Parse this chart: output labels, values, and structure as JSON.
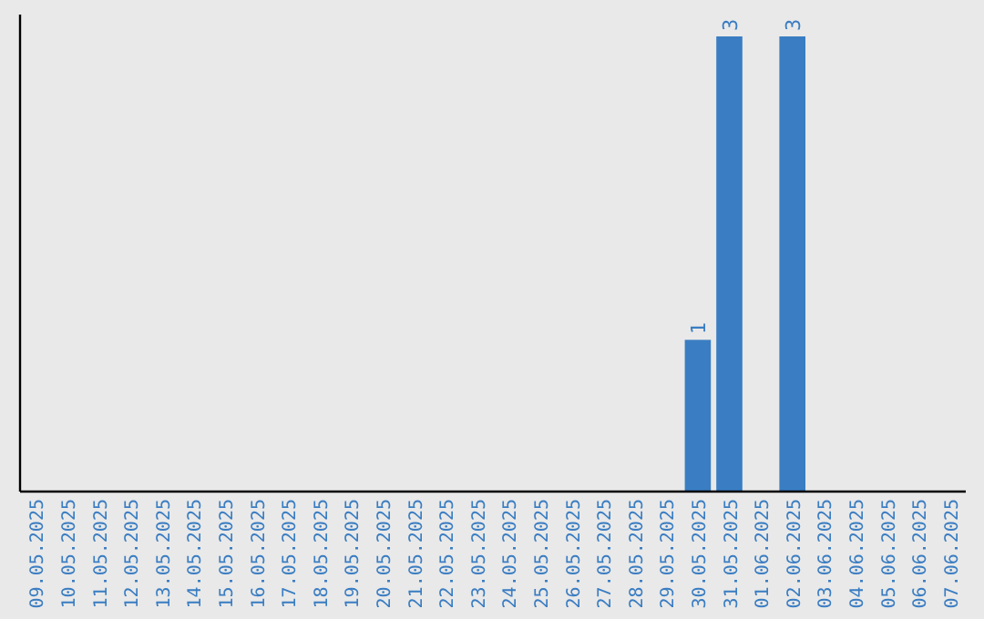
{
  "chart_data": {
    "type": "bar",
    "categories": [
      "09.05.2025",
      "10.05.2025",
      "11.05.2025",
      "12.05.2025",
      "13.05.2025",
      "14.05.2025",
      "15.05.2025",
      "16.05.2025",
      "17.05.2025",
      "18.05.2025",
      "19.05.2025",
      "20.05.2025",
      "21.05.2025",
      "22.05.2025",
      "23.05.2025",
      "24.05.2025",
      "25.05.2025",
      "26.05.2025",
      "27.05.2025",
      "28.05.2025",
      "29.05.2025",
      "30.05.2025",
      "31.05.2025",
      "01.06.2025",
      "02.06.2025",
      "03.06.2025",
      "04.06.2025",
      "05.06.2025",
      "06.06.2025",
      "07.06.2025"
    ],
    "values": [
      null,
      null,
      null,
      null,
      null,
      null,
      null,
      null,
      null,
      null,
      null,
      null,
      null,
      null,
      null,
      null,
      null,
      null,
      null,
      null,
      null,
      1,
      3,
      null,
      3,
      null,
      null,
      null,
      null,
      null
    ],
    "color": "#3a7dc2",
    "data_labels": true
  }
}
